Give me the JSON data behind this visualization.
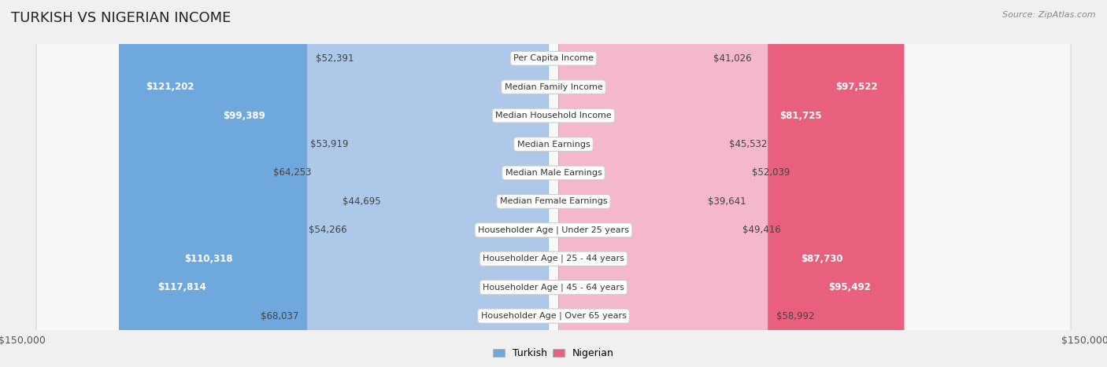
{
  "title": "TURKISH VS NIGERIAN INCOME",
  "source": "Source: ZipAtlas.com",
  "categories": [
    "Per Capita Income",
    "Median Family Income",
    "Median Household Income",
    "Median Earnings",
    "Median Male Earnings",
    "Median Female Earnings",
    "Householder Age | Under 25 years",
    "Householder Age | 25 - 44 years",
    "Householder Age | 45 - 64 years",
    "Householder Age | Over 65 years"
  ],
  "turkish_values": [
    52391,
    121202,
    99389,
    53919,
    64253,
    44695,
    54266,
    110318,
    117814,
    68037
  ],
  "nigerian_values": [
    41026,
    97522,
    81725,
    45532,
    52039,
    39641,
    49416,
    87730,
    95492,
    58992
  ],
  "turkish_labels": [
    "$52,391",
    "$121,202",
    "$99,389",
    "$53,919",
    "$64,253",
    "$44,695",
    "$54,266",
    "$110,318",
    "$117,814",
    "$68,037"
  ],
  "nigerian_labels": [
    "$41,026",
    "$97,522",
    "$81,725",
    "$45,532",
    "$52,039",
    "$39,641",
    "$49,416",
    "$87,730",
    "$95,492",
    "$58,992"
  ],
  "turkish_color_light": "#adc8e8",
  "turkish_color_dark": "#6fa8dc",
  "nigerian_color_light": "#f4b8ca",
  "nigerian_color_dark": "#e8607e",
  "bg_color": "#f0f0f0",
  "row_bg": "#f8f8f8",
  "max_value": 150000,
  "title_fontsize": 13,
  "label_fontsize": 8.5,
  "category_fontsize": 8,
  "axis_label_fontsize": 9,
  "turkish_white_threshold": 70000,
  "nigerian_white_threshold": 60000
}
